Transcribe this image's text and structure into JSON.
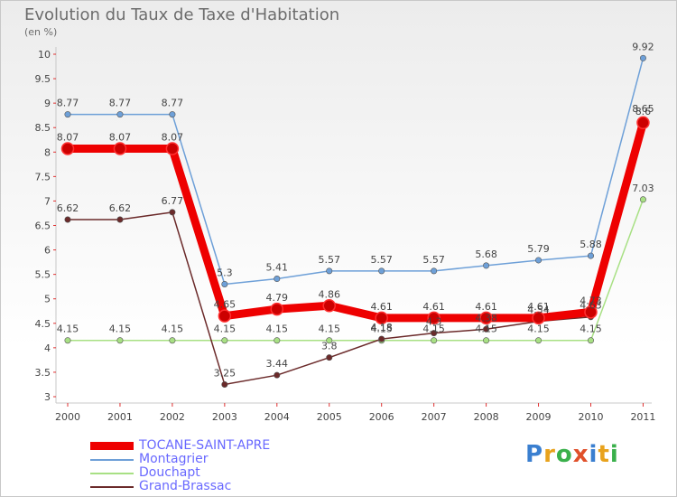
{
  "chart_data": {
    "type": "line",
    "title": "Evolution du Taux de Taxe d'Habitation",
    "subtitle": "(en %)",
    "x": [
      "2000",
      "2001",
      "2002",
      "2003",
      "2004",
      "2005",
      "2006",
      "2007",
      "2008",
      "2009",
      "2010",
      "2011"
    ],
    "ylim": [
      3,
      10
    ],
    "yticks": [
      "3",
      "3.5",
      "4",
      "4.5",
      "5",
      "5.5",
      "6",
      "6.5",
      "7",
      "7.5",
      "8",
      "8.5",
      "9",
      "9.5",
      "10"
    ],
    "grid": false,
    "legend_position": "bottom-left",
    "series": [
      {
        "name": "TOCANE-SAINT-APRE",
        "color": "#ee0000",
        "values": [
          8.07,
          8.07,
          8.07,
          4.65,
          4.79,
          4.86,
          4.61,
          4.61,
          4.61,
          4.61,
          4.73,
          8.6
        ],
        "labels": [
          "8.07",
          "8.07",
          "8.07",
          "4.65",
          "4.79",
          "4.86",
          "4.61",
          "4.61",
          "4.61",
          "4.61",
          "4.73",
          "8.6"
        ]
      },
      {
        "name": "Montagrier",
        "color": "#6ea0d8",
        "values": [
          8.77,
          8.77,
          8.77,
          5.3,
          5.41,
          5.57,
          5.57,
          5.57,
          5.68,
          5.79,
          5.88,
          9.92
        ],
        "labels": [
          "8.77",
          "8.77",
          "8.77",
          "5.3",
          "5.41",
          "5.57",
          "5.57",
          "5.57",
          "5.68",
          "5.79",
          "5.88",
          "9.92"
        ]
      },
      {
        "name": "Douchapt",
        "color": "#a8e084",
        "values": [
          4.15,
          4.15,
          4.15,
          4.15,
          4.15,
          4.15,
          4.15,
          4.15,
          4.15,
          4.15,
          4.15,
          7.03
        ],
        "labels": [
          "4.15",
          "4.15",
          "4.15",
          "4.15",
          "4.15",
          "4.15",
          "4.15",
          "4.15",
          "4.15",
          "4.15",
          "4.15",
          "7.03"
        ]
      },
      {
        "name": "Grand-Brassac",
        "color": "#6b2a2a",
        "values": [
          6.62,
          6.62,
          6.77,
          3.25,
          3.44,
          3.8,
          4.18,
          4.3,
          4.38,
          4.54,
          4.63,
          8.65
        ],
        "labels": [
          "6.62",
          "6.62",
          "6.77",
          "3.25",
          "3.44",
          "3.8",
          "4.18",
          "4.3",
          "4.38",
          "4.54",
          "4.63",
          "8.65"
        ]
      }
    ]
  },
  "logo": {
    "letters": [
      "P",
      "r",
      "o",
      "x",
      "i",
      "t",
      "i"
    ]
  }
}
